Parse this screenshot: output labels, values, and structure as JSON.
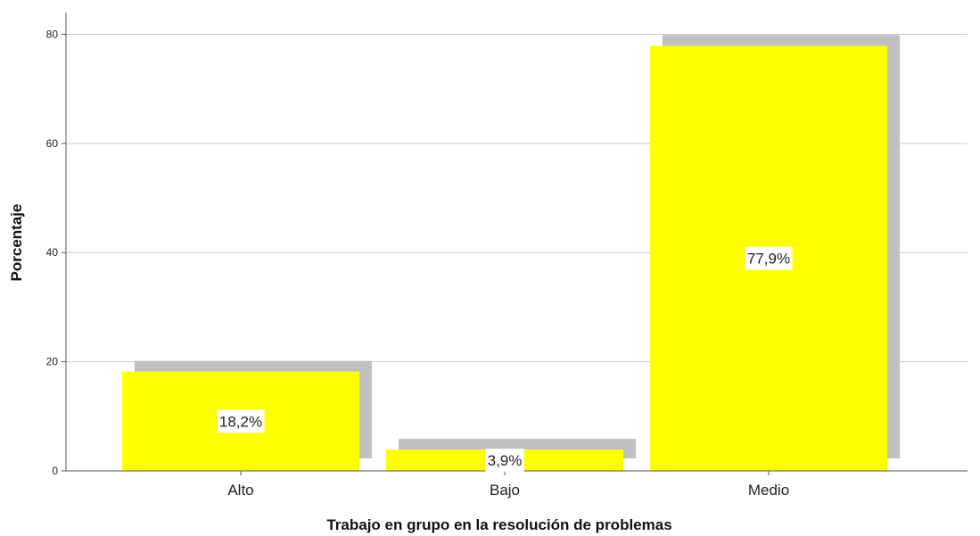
{
  "chart_data": {
    "type": "bar",
    "categories": [
      "Alto",
      "Bajo",
      "Medio"
    ],
    "values": [
      18.2,
      3.9,
      77.9
    ],
    "data_labels": [
      "18,2%",
      "3,9%",
      "77,9%"
    ],
    "xlabel": "Trabajo en grupo en la resolución de problemas",
    "ylabel": "Porcentaje",
    "ylim": [
      0,
      84
    ],
    "yticks": [
      0,
      20,
      40,
      60,
      80
    ],
    "grid": "horizontal",
    "bar_color": "#ffff00",
    "shadow_color": "#c0c0c0"
  }
}
